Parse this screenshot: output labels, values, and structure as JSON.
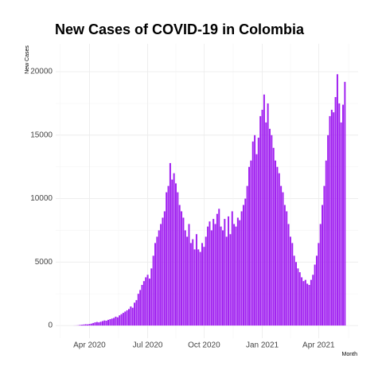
{
  "chart_data": {
    "type": "bar",
    "title": "New Cases of COVID-19 in Colombia",
    "x_label": "Month",
    "y_label": "New Cases",
    "color": "#a020f0",
    "grid": true,
    "ylim": [
      -1000,
      22200
    ],
    "yticks": [
      0,
      5000,
      10000,
      15000,
      20000
    ],
    "categories": [
      null,
      null,
      null,
      null,
      null,
      null,
      null,
      null,
      null,
      "Apr 2020",
      null,
      null,
      null,
      null,
      null,
      null,
      null,
      null,
      null,
      null,
      null,
      null,
      null,
      null,
      null,
      null,
      null,
      null,
      null,
      null,
      null,
      null,
      null,
      null,
      null,
      null,
      null,
      null,
      null,
      null,
      "Jul 2020",
      null,
      null,
      null,
      null,
      null,
      null,
      null,
      null,
      null,
      null,
      null,
      null,
      null,
      null,
      null,
      null,
      null,
      null,
      null,
      null,
      null,
      null,
      null,
      null,
      null,
      null,
      null,
      null,
      null,
      "Oct 2020",
      null,
      null,
      null,
      null,
      null,
      null,
      null,
      null,
      null,
      null,
      null,
      null,
      null,
      null,
      null,
      null,
      null,
      null,
      null,
      null,
      null,
      null,
      null,
      null,
      null,
      null,
      null,
      null,
      null,
      null,
      "Jan 2021",
      null,
      null,
      null,
      null,
      null,
      null,
      null,
      null,
      null,
      null,
      null,
      null,
      null,
      null,
      null,
      null,
      null,
      null,
      null,
      null,
      null,
      null,
      null,
      null,
      null,
      null,
      null,
      null,
      null,
      "Apr 2021",
      null,
      null,
      null,
      null,
      null,
      null,
      null,
      null,
      null,
      null,
      null,
      null,
      null,
      null
    ],
    "values": [
      0,
      5,
      10,
      20,
      50,
      60,
      80,
      100,
      90,
      120,
      150,
      200,
      250,
      280,
      250,
      300,
      350,
      400,
      380,
      450,
      500,
      550,
      600,
      700,
      650,
      800,
      900,
      1000,
      1100,
      1200,
      1300,
      1500,
      1400,
      1800,
      2000,
      2500,
      2800,
      3200,
      3500,
      3800,
      4000,
      3700,
      4500,
      5500,
      6500,
      7000,
      7500,
      8000,
      8500,
      9000,
      10500,
      11000,
      12800,
      11500,
      12000,
      11200,
      10500,
      9500,
      9000,
      8500,
      7500,
      7000,
      8000,
      6500,
      6800,
      6000,
      7200,
      6000,
      5800,
      6500,
      6200,
      7000,
      7800,
      8200,
      7500,
      8400,
      8000,
      8800,
      9200,
      7800,
      7500,
      8400,
      7000,
      8600,
      7200,
      9000,
      8000,
      7800,
      8500,
      8300,
      9000,
      9500,
      10000,
      11000,
      12500,
      13000,
      14500,
      15000,
      13500,
      14800,
      16500,
      17000,
      18200,
      16000,
      17500,
      15500,
      15000,
      14000,
      13000,
      12500,
      12000,
      11000,
      10500,
      9500,
      9000,
      8000,
      7000,
      6500,
      5500,
      5000,
      4500,
      4200,
      3800,
      3500,
      3600,
      3300,
      3200,
      3600,
      4000,
      4800,
      5500,
      6500,
      8000,
      9500,
      11000,
      13000,
      15000,
      16500,
      17000,
      16800,
      18000,
      19800,
      17500,
      16000,
      17400,
      19200
    ]
  }
}
